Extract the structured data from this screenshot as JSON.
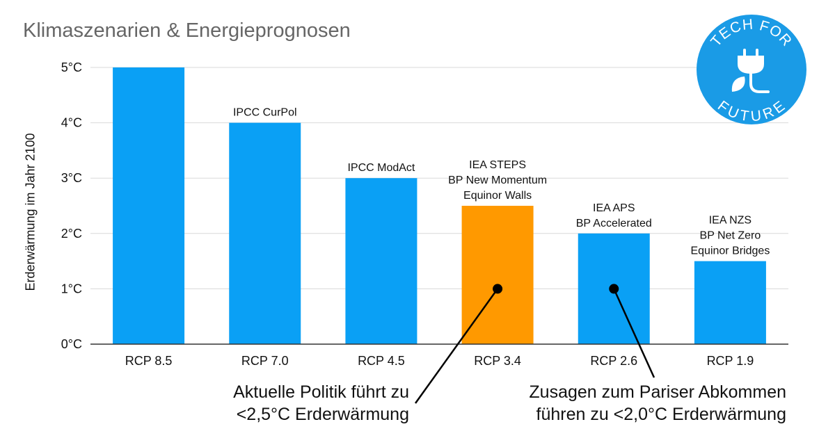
{
  "title": "Klimaszenarien & Energieprognosen",
  "logo": {
    "text_top": "TECH FOR",
    "text_bottom": "FUTURE",
    "icon": "plug-leaf-icon",
    "color": "#1A9BE6"
  },
  "colors": {
    "bar": "#0AA0F5",
    "highlight": "#FF9900",
    "grid": "#D9D9D9",
    "axis": "#333333"
  },
  "callouts": [
    {
      "line1": "Aktuelle Politik führt zu",
      "line2": "<2,5°C Erderwärmung"
    },
    {
      "line1": "Zusagen zum Pariser Abkommen",
      "line2": "führen zu <2,0°C Erderwärmung"
    }
  ],
  "chart_data": {
    "type": "bar",
    "categories": [
      "RCP 8.5",
      "RCP 7.0",
      "RCP 4.5",
      "RCP 3.4",
      "RCP 2.6",
      "RCP 1.9"
    ],
    "values": [
      5,
      4,
      3,
      2.5,
      2,
      1.5
    ],
    "highlight_index": 3,
    "bar_annotations": [
      [],
      [
        "IPCC CurPol"
      ],
      [
        "IPCC ModAct"
      ],
      [
        "IEA STEPS",
        "BP New Momentum",
        "Equinor Walls"
      ],
      [
        "IEA APS",
        "BP Accelerated"
      ],
      [
        "IEA NZS",
        "BP Net Zero",
        "Equinor Bridges"
      ]
    ],
    "ylabel": "Erderwärmung im Jahr 2100",
    "xlabel": "",
    "ylim": [
      0,
      5
    ],
    "yticks": [
      0,
      1,
      2,
      3,
      4,
      5
    ],
    "ytick_labels": [
      "0°C",
      "1°C",
      "2°C",
      "3°C",
      "4°C",
      "5°C"
    ],
    "grid": true,
    "legend": "none"
  }
}
